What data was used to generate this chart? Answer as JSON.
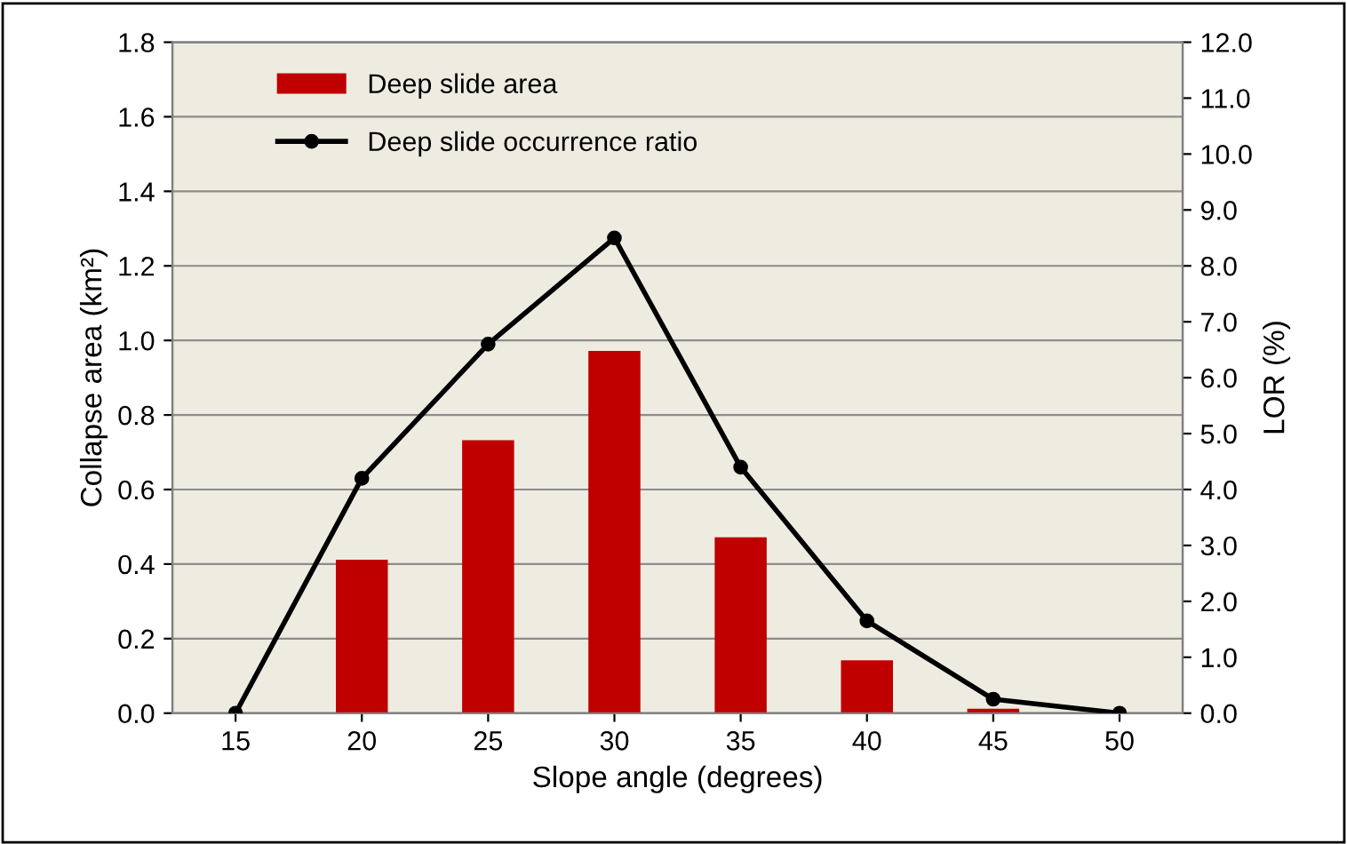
{
  "chart_data": {
    "type": "bar",
    "xlabel": "Slope angle (degrees)",
    "ylabel": "Collapse area (km²)",
    "y2label": "LOR (%)",
    "categories": [
      "15",
      "20",
      "25",
      "30",
      "35",
      "40",
      "45",
      "50"
    ],
    "series": [
      {
        "name": "Deep slide area",
        "color": "#c00000",
        "values": [
          0.0,
          0.41,
          0.73,
          0.97,
          0.47,
          0.14,
          0.01,
          0.0
        ]
      },
      {
        "name": "Deep slide occurrence ratio",
        "type": "line",
        "axis": "y2",
        "color": "#000000",
        "marker": "circle",
        "line_style": "solid",
        "values": [
          0.0,
          4.2,
          6.6,
          8.5,
          4.4,
          1.65,
          0.25,
          0.0
        ]
      }
    ],
    "ylim": [
      0.0,
      1.8
    ],
    "yticks": [
      {
        "value": 0,
        "label": "0.0"
      },
      0.2,
      0.4,
      0.6,
      0.8,
      {
        "value": 1,
        "label": "1.0"
      },
      1.2,
      1.4,
      1.6,
      1.8
    ],
    "y2lim": [
      0.0,
      12.0
    ],
    "y2ticks": [
      {
        "value": 0,
        "label": "0.0"
      },
      {
        "value": 1,
        "label": "1.0"
      },
      {
        "value": 2,
        "label": "2.0"
      },
      {
        "value": 3,
        "label": "3.0"
      },
      {
        "value": 4,
        "label": "4.0"
      },
      {
        "value": 5,
        "label": "5.0"
      },
      {
        "value": 6,
        "label": "6.0"
      },
      {
        "value": 7,
        "label": "7.0"
      },
      {
        "value": 8,
        "label": "8.0"
      },
      {
        "value": 9,
        "label": "9.0"
      },
      {
        "value": 10,
        "label": "10.0"
      },
      {
        "value": 11,
        "label": "11.0"
      },
      {
        "value": 12,
        "label": "12.0"
      }
    ],
    "grid": "y",
    "legend": "top left"
  }
}
